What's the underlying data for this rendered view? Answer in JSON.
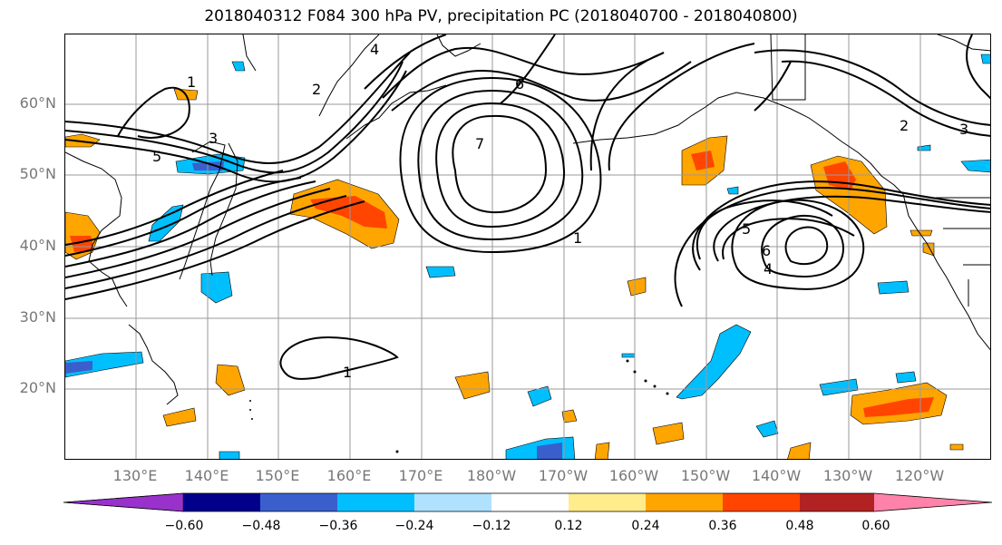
{
  "title": "2018040312 F084 300 hPa PV, precipitation PC (2018040700 - 2018040800)",
  "lat_labels": [
    "60°N",
    "50°N",
    "40°N",
    "30°N",
    "20°N"
  ],
  "lon_labels": [
    "130°E",
    "140°E",
    "150°E",
    "160°E",
    "170°E",
    "180°W",
    "170°W",
    "160°W",
    "150°W",
    "140°W",
    "130°W",
    "120°W"
  ],
  "contour_labels": [
    "1",
    "2",
    "3",
    "4",
    "5",
    "6",
    "7",
    "1",
    "2",
    "3",
    "5",
    "6",
    "4",
    "1"
  ],
  "colorbar": {
    "ticks": [
      "−0.60",
      "−0.48",
      "−0.36",
      "−0.24",
      "−0.12",
      "0.12",
      "0.24",
      "0.36",
      "0.48",
      "0.60"
    ],
    "colors": [
      "#9932cc",
      "#00008b",
      "#3a5fcd",
      "#00bfff",
      "#b0e2ff",
      "#ffffff",
      "#ffec8b",
      "#ffa500",
      "#ff4500",
      "#b22222",
      "#ff82ab"
    ]
  },
  "colors": {
    "text_axis": "#777777",
    "grid": "#9a9a9a",
    "contour": "#000000"
  }
}
